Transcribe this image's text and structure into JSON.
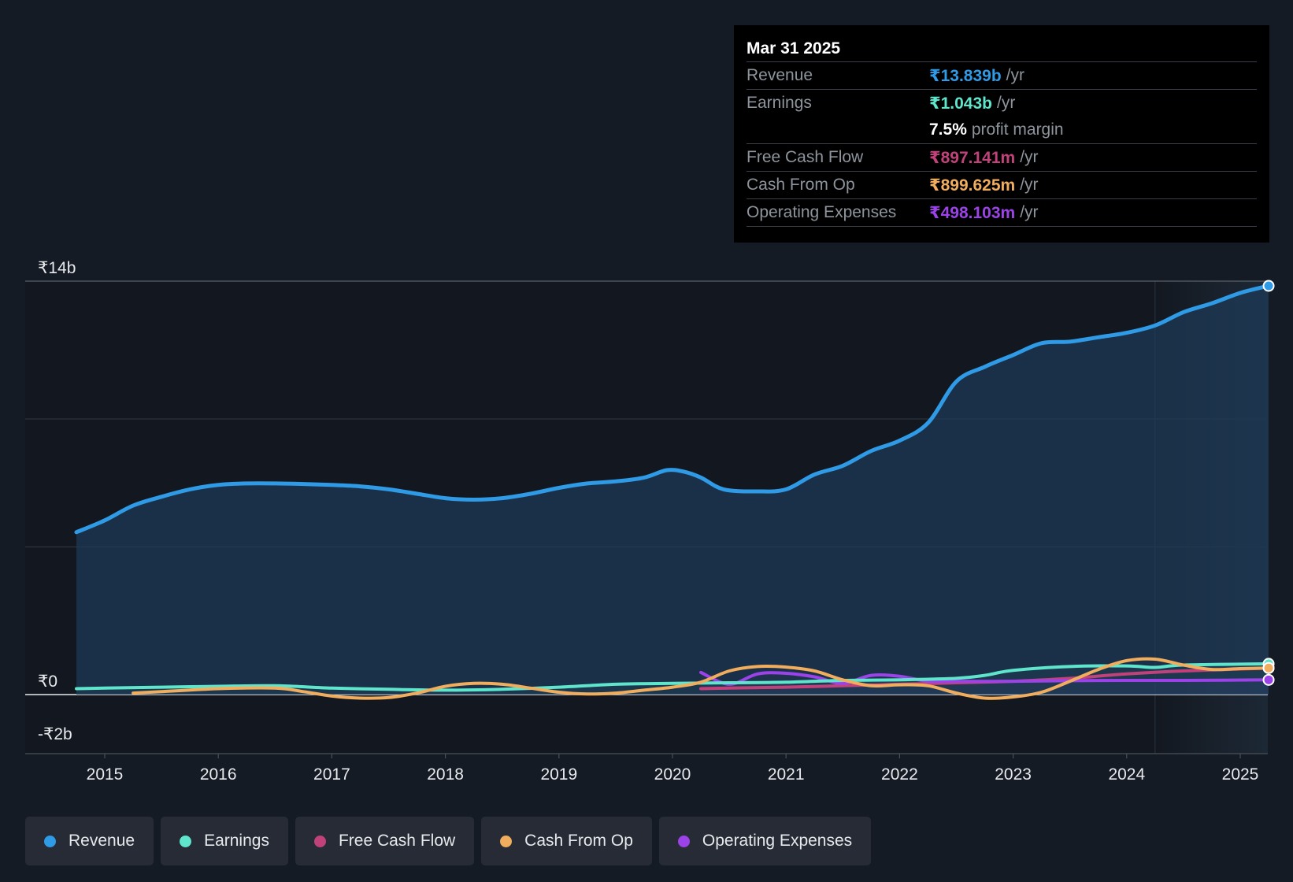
{
  "chart_data": {
    "type": "line",
    "x_ticks": [
      "2015",
      "2016",
      "2017",
      "2018",
      "2019",
      "2020",
      "2021",
      "2022",
      "2023",
      "2024",
      "2025"
    ],
    "y_labels": [
      "₹14b",
      "₹0",
      "-₹2b"
    ],
    "ylim": [
      -2,
      14
    ],
    "xlim": [
      2014.75,
      2025.25
    ],
    "forecast_start": 2024.25,
    "series": [
      {
        "name": "Revenue",
        "color": "#2f9ae6",
        "fill": true,
        "points": [
          [
            2014.75,
            5.5
          ],
          [
            2015.0,
            5.9
          ],
          [
            2015.25,
            6.4
          ],
          [
            2015.5,
            6.7
          ],
          [
            2015.75,
            6.95
          ],
          [
            2016.0,
            7.1
          ],
          [
            2016.25,
            7.15
          ],
          [
            2016.5,
            7.15
          ],
          [
            2016.75,
            7.13
          ],
          [
            2017.0,
            7.1
          ],
          [
            2017.25,
            7.05
          ],
          [
            2017.5,
            6.95
          ],
          [
            2017.75,
            6.8
          ],
          [
            2018.0,
            6.65
          ],
          [
            2018.25,
            6.6
          ],
          [
            2018.5,
            6.65
          ],
          [
            2018.75,
            6.8
          ],
          [
            2019.0,
            7.0
          ],
          [
            2019.25,
            7.15
          ],
          [
            2019.5,
            7.22
          ],
          [
            2019.75,
            7.35
          ],
          [
            2019.95,
            7.6
          ],
          [
            2020.1,
            7.55
          ],
          [
            2020.25,
            7.35
          ],
          [
            2020.45,
            6.95
          ],
          [
            2020.75,
            6.88
          ],
          [
            2021.0,
            6.95
          ],
          [
            2021.25,
            7.45
          ],
          [
            2021.5,
            7.75
          ],
          [
            2021.75,
            8.25
          ],
          [
            2022.0,
            8.6
          ],
          [
            2022.25,
            9.2
          ],
          [
            2022.5,
            10.6
          ],
          [
            2022.75,
            11.1
          ],
          [
            2023.0,
            11.5
          ],
          [
            2023.25,
            11.9
          ],
          [
            2023.5,
            11.95
          ],
          [
            2023.75,
            12.1
          ],
          [
            2024.0,
            12.25
          ],
          [
            2024.25,
            12.5
          ],
          [
            2024.5,
            12.95
          ],
          [
            2024.75,
            13.25
          ],
          [
            2025.0,
            13.6
          ],
          [
            2025.25,
            13.84
          ]
        ]
      },
      {
        "name": "Earnings",
        "color": "#5ee5cc",
        "fill": false,
        "points": [
          [
            2014.75,
            0.2
          ],
          [
            2015.0,
            0.22
          ],
          [
            2015.5,
            0.25
          ],
          [
            2016.0,
            0.28
          ],
          [
            2016.5,
            0.3
          ],
          [
            2017.0,
            0.22
          ],
          [
            2017.5,
            0.18
          ],
          [
            2018.0,
            0.15
          ],
          [
            2018.5,
            0.18
          ],
          [
            2019.0,
            0.25
          ],
          [
            2019.5,
            0.35
          ],
          [
            2020.0,
            0.38
          ],
          [
            2020.5,
            0.4
          ],
          [
            2021.0,
            0.42
          ],
          [
            2021.5,
            0.48
          ],
          [
            2022.0,
            0.5
          ],
          [
            2022.5,
            0.55
          ],
          [
            2022.75,
            0.65
          ],
          [
            2023.0,
            0.82
          ],
          [
            2023.5,
            0.95
          ],
          [
            2024.0,
            0.97
          ],
          [
            2024.25,
            0.92
          ],
          [
            2024.5,
            1.0
          ],
          [
            2025.25,
            1.043
          ]
        ]
      },
      {
        "name": "Cash From Op",
        "color": "#f0ad5e",
        "fill": false,
        "points": [
          [
            2015.25,
            0.05
          ],
          [
            2015.5,
            0.1
          ],
          [
            2016.0,
            0.2
          ],
          [
            2016.5,
            0.22
          ],
          [
            2016.75,
            0.1
          ],
          [
            2017.0,
            -0.05
          ],
          [
            2017.25,
            -0.12
          ],
          [
            2017.5,
            -0.1
          ],
          [
            2017.75,
            0.05
          ],
          [
            2018.0,
            0.28
          ],
          [
            2018.25,
            0.38
          ],
          [
            2018.5,
            0.35
          ],
          [
            2018.75,
            0.22
          ],
          [
            2019.0,
            0.08
          ],
          [
            2019.25,
            0.02
          ],
          [
            2019.5,
            0.05
          ],
          [
            2019.75,
            0.15
          ],
          [
            2020.0,
            0.25
          ],
          [
            2020.25,
            0.42
          ],
          [
            2020.5,
            0.8
          ],
          [
            2020.75,
            0.95
          ],
          [
            2021.0,
            0.93
          ],
          [
            2021.25,
            0.8
          ],
          [
            2021.5,
            0.5
          ],
          [
            2021.75,
            0.3
          ],
          [
            2022.0,
            0.33
          ],
          [
            2022.25,
            0.3
          ],
          [
            2022.5,
            0.05
          ],
          [
            2022.75,
            -0.12
          ],
          [
            2023.0,
            -0.08
          ],
          [
            2023.25,
            0.08
          ],
          [
            2023.5,
            0.45
          ],
          [
            2023.75,
            0.85
          ],
          [
            2024.0,
            1.15
          ],
          [
            2024.25,
            1.2
          ],
          [
            2024.5,
            1.0
          ],
          [
            2024.75,
            0.85
          ],
          [
            2025.0,
            0.88
          ],
          [
            2025.25,
            0.9
          ]
        ]
      },
      {
        "name": "Free Cash Flow",
        "color": "#c1427b",
        "fill": false,
        "points": [
          [
            2020.25,
            0.2
          ],
          [
            2020.5,
            0.22
          ],
          [
            2021.0,
            0.25
          ],
          [
            2021.5,
            0.3
          ],
          [
            2022.0,
            0.35
          ],
          [
            2022.5,
            0.4
          ],
          [
            2023.0,
            0.45
          ],
          [
            2023.5,
            0.55
          ],
          [
            2024.0,
            0.7
          ],
          [
            2024.5,
            0.8
          ],
          [
            2025.25,
            0.897
          ]
        ]
      },
      {
        "name": "Operating Expenses",
        "color": "#9b43e8",
        "fill": false,
        "points": [
          [
            2020.25,
            0.75
          ],
          [
            2020.5,
            0.35
          ],
          [
            2020.75,
            0.7
          ],
          [
            2021.0,
            0.72
          ],
          [
            2021.25,
            0.6
          ],
          [
            2021.5,
            0.38
          ],
          [
            2021.75,
            0.65
          ],
          [
            2022.0,
            0.62
          ],
          [
            2022.25,
            0.45
          ],
          [
            2022.5,
            0.45
          ],
          [
            2023.0,
            0.45
          ],
          [
            2023.5,
            0.47
          ],
          [
            2024.0,
            0.48
          ],
          [
            2024.5,
            0.48
          ],
          [
            2025.25,
            0.498
          ]
        ]
      }
    ]
  },
  "tooltip": {
    "date": "Mar 31 2025",
    "rows": [
      {
        "label": "Revenue",
        "value": "₹13.839b",
        "unit": "/yr",
        "color": "#2f9ae6"
      },
      {
        "label": "Earnings",
        "value": "₹1.043b",
        "unit": "/yr",
        "color": "#5ee5cc"
      },
      {
        "label": "Free Cash Flow",
        "value": "₹897.141m",
        "unit": "/yr",
        "color": "#c1427b"
      },
      {
        "label": "Cash From Op",
        "value": "₹899.625m",
        "unit": "/yr",
        "color": "#f0ad5e"
      },
      {
        "label": "Operating Expenses",
        "value": "₹498.103m",
        "unit": "/yr",
        "color": "#9b43e8"
      }
    ],
    "profit_margin": {
      "value": "7.5%",
      "label": "profit margin"
    }
  },
  "legend": [
    {
      "label": "Revenue",
      "color": "#2f9ae6"
    },
    {
      "label": "Earnings",
      "color": "#5ee5cc"
    },
    {
      "label": "Free Cash Flow",
      "color": "#c1427b"
    },
    {
      "label": "Cash From Op",
      "color": "#f0ad5e"
    },
    {
      "label": "Operating Expenses",
      "color": "#9b43e8"
    }
  ]
}
